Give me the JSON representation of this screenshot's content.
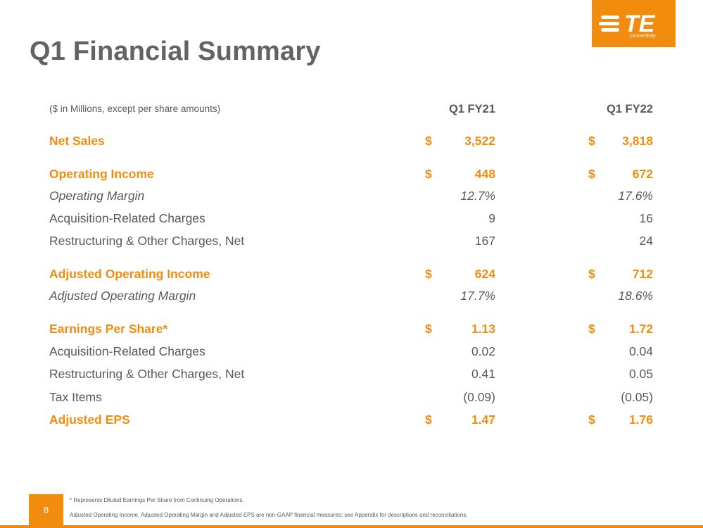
{
  "title": "Q1 Financial Summary",
  "logo": {
    "text": "TE",
    "sub": "connectivity"
  },
  "table": {
    "note": "($ in Millions, except per share amounts)",
    "columns": [
      "Q1 FY21",
      "Q1 FY22"
    ],
    "rows": [
      {
        "label": "Net Sales",
        "style": "orange",
        "cur": [
          "$",
          "$"
        ],
        "values": [
          "3,522",
          "3,818"
        ]
      },
      {
        "label": "Operating Income",
        "style": "orange",
        "cur": [
          "$",
          "$"
        ],
        "values": [
          "448",
          "672"
        ]
      },
      {
        "label": "Operating Margin",
        "style": "italic",
        "cur": [
          "",
          ""
        ],
        "values": [
          "12.7%",
          "17.6%"
        ]
      },
      {
        "label": "Acquisition-Related Charges",
        "style": "plain",
        "cur": [
          "",
          ""
        ],
        "values": [
          "9",
          "16"
        ]
      },
      {
        "label": "Restructuring & Other Charges, Net",
        "style": "plain",
        "cur": [
          "",
          ""
        ],
        "values": [
          "167",
          "24"
        ]
      },
      {
        "label": "Adjusted Operating Income",
        "style": "orange",
        "cur": [
          "$",
          "$"
        ],
        "values": [
          "624",
          "712"
        ]
      },
      {
        "label": "Adjusted Operating Margin",
        "style": "italic",
        "cur": [
          "",
          ""
        ],
        "values": [
          "17.7%",
          "18.6%"
        ]
      },
      {
        "label": "Earnings Per Share*",
        "style": "orange",
        "cur": [
          "$",
          "$"
        ],
        "values": [
          "1.13",
          "1.72"
        ]
      },
      {
        "label": "Acquisition-Related Charges",
        "style": "plain",
        "cur": [
          "",
          ""
        ],
        "values": [
          "0.02",
          "0.04"
        ]
      },
      {
        "label": "Restructuring & Other Charges, Net",
        "style": "plain",
        "cur": [
          "",
          ""
        ],
        "values": [
          "0.41",
          "0.05"
        ]
      },
      {
        "label": "Tax Items",
        "style": "plain",
        "cur": [
          "",
          ""
        ],
        "values": [
          "(0.09)",
          "(0.05)"
        ]
      },
      {
        "label": "Adjusted EPS",
        "style": "orange",
        "cur": [
          "$",
          "$"
        ],
        "values": [
          "1.47",
          "1.76"
        ]
      }
    ]
  },
  "footer": {
    "page_number": "8",
    "note1": "*  Represents Diluted Earnings Per Share from Continuing Operations.",
    "note2": "Adjusted Operating Income, Adjusted Operating Margin and Adjusted EPS are non-GAAP financial measures; see Appendix for descriptions and reconciliations."
  },
  "colors": {
    "accent": "#f28c0f",
    "text": "#595959",
    "title": "#636363"
  }
}
